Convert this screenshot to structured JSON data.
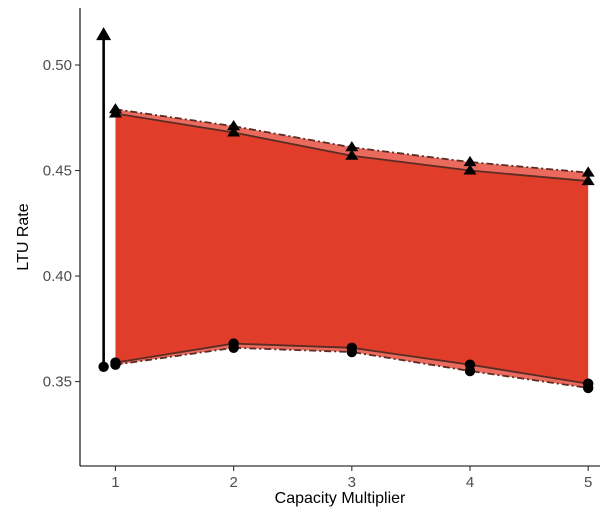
{
  "chart_data": {
    "type": "area",
    "title": "",
    "xlabel": "Capacity Multiplier",
    "ylabel": "LTU Rate",
    "x": [
      1,
      2,
      3,
      4,
      5
    ],
    "xlim": [
      0.7,
      5.1
    ],
    "ylim": [
      0.31,
      0.527
    ],
    "x_ticks": [
      1,
      2,
      3,
      4,
      5
    ],
    "x_tick_labels": [
      "1",
      "2",
      "3",
      "4",
      "5"
    ],
    "y_ticks": [
      0.35,
      0.4,
      0.45,
      0.5
    ],
    "y_tick_labels": [
      "0.35",
      "0.40",
      "0.45",
      "0.50"
    ],
    "grid": false,
    "legend": "none",
    "colors": {
      "inner_fill": "#e03e2b",
      "outer_fill": "#ea6a5e",
      "line": "#5b2c24",
      "marker": "#000000"
    },
    "series": [
      {
        "role": "upper-outer",
        "marker": "triangle",
        "line": "dashdot",
        "values": [
          0.479,
          0.471,
          0.461,
          0.454,
          0.449
        ]
      },
      {
        "role": "upper-inner",
        "marker": "triangle",
        "line": "solid",
        "values": [
          0.477,
          0.468,
          0.457,
          0.45,
          0.445
        ]
      },
      {
        "role": "lower-inner",
        "marker": "circle",
        "line": "solid",
        "values": [
          0.359,
          0.368,
          0.366,
          0.358,
          0.349
        ]
      },
      {
        "role": "lower-outer",
        "marker": "circle",
        "line": "dashdot",
        "values": [
          0.358,
          0.366,
          0.364,
          0.355,
          0.347
        ]
      }
    ],
    "annotations": [
      {
        "type": "arrow",
        "x": 0.9,
        "y_start": 0.357,
        "y_end": 0.517
      }
    ]
  }
}
